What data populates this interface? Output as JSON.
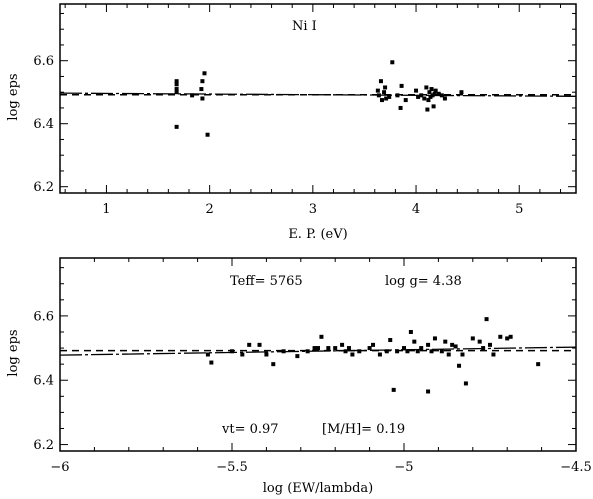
{
  "chart_data": [
    {
      "type": "scatter",
      "panel": "top",
      "annotation": "Ni I",
      "xlabel": "E. P. (eV)",
      "ylabel": "log eps",
      "xlim": [
        0.55,
        5.55
      ],
      "ylim": [
        6.18,
        6.78
      ],
      "xticks_major": [
        1,
        2,
        3,
        4,
        5
      ],
      "xticks_minor": [
        0.6,
        0.8,
        1.2,
        1.4,
        1.6,
        1.8,
        2.2,
        2.4,
        2.6,
        2.8,
        3.2,
        3.4,
        3.6,
        3.8,
        4.2,
        4.4,
        4.6,
        4.8,
        5.2,
        5.4
      ],
      "yticks_major": [
        6.2,
        6.4,
        6.6
      ],
      "yticks_minor": [
        6.25,
        6.3,
        6.35,
        6.45,
        6.5,
        6.55,
        6.65,
        6.7,
        6.75
      ],
      "tick_labels_x": [
        "1",
        "2",
        "3",
        "4",
        "5"
      ],
      "tick_labels_y": [
        "6.2",
        "6.4",
        "6.6"
      ],
      "points": [
        [
          1.68,
          6.535
        ],
        [
          1.68,
          6.525
        ],
        [
          1.68,
          6.51
        ],
        [
          1.68,
          6.5
        ],
        [
          1.68,
          6.39
        ],
        [
          1.83,
          6.49
        ],
        [
          1.92,
          6.51
        ],
        [
          1.93,
          6.535
        ],
        [
          1.93,
          6.48
        ],
        [
          1.95,
          6.56
        ],
        [
          1.98,
          6.365
        ],
        [
          3.63,
          6.505
        ],
        [
          3.64,
          6.49
        ],
        [
          3.66,
          6.535
        ],
        [
          3.67,
          6.475
        ],
        [
          3.69,
          6.5
        ],
        [
          3.7,
          6.515
        ],
        [
          3.71,
          6.48
        ],
        [
          3.74,
          6.485
        ],
        [
          3.77,
          6.595
        ],
        [
          3.82,
          6.49
        ],
        [
          3.85,
          6.45
        ],
        [
          3.86,
          6.52
        ],
        [
          3.9,
          6.475
        ],
        [
          4.0,
          6.505
        ],
        [
          4.02,
          6.485
        ],
        [
          4.05,
          6.49
        ],
        [
          4.08,
          6.48
        ],
        [
          4.1,
          6.515
        ],
        [
          4.11,
          6.445
        ],
        [
          4.12,
          6.475
        ],
        [
          4.13,
          6.5
        ],
        [
          4.14,
          6.485
        ],
        [
          4.15,
          6.51
        ],
        [
          4.16,
          6.49
        ],
        [
          4.17,
          6.455
        ],
        [
          4.18,
          6.495
        ],
        [
          4.19,
          6.505
        ],
        [
          4.22,
          6.495
        ],
        [
          4.25,
          6.49
        ],
        [
          4.28,
          6.48
        ],
        [
          4.44,
          6.5
        ]
      ],
      "fit_solid": {
        "x": [
          0.55,
          5.55
        ],
        "y": [
          6.497,
          6.487
        ]
      },
      "fit_dashed": {
        "x": [
          0.55,
          5.55
        ],
        "y": [
          6.492,
          6.492
        ]
      }
    },
    {
      "type": "scatter",
      "panel": "bottom",
      "annotations": {
        "teff": "Teff= 5765",
        "logg": "log g= 4.38",
        "vt": "vt= 0.97",
        "mh": "[M/H]= 0.19"
      },
      "xlabel": "log (EW/lambda)",
      "ylabel": "log eps",
      "xlim": [
        -6.0,
        -4.5
      ],
      "ylim": [
        6.18,
        6.78
      ],
      "xticks_major": [
        -6,
        -5.5,
        -5,
        -4.5
      ],
      "xticks_minor": [
        -5.9,
        -5.8,
        -5.7,
        -5.6,
        -5.4,
        -5.3,
        -5.2,
        -5.1,
        -4.9,
        -4.8,
        -4.7,
        -4.6
      ],
      "yticks_major": [
        6.2,
        6.4,
        6.6
      ],
      "yticks_minor": [
        6.25,
        6.3,
        6.35,
        6.45,
        6.5,
        6.55,
        6.65,
        6.7,
        6.75
      ],
      "tick_labels_x": [
        "−6",
        "−5.5",
        "−5",
        "−4.5"
      ],
      "tick_labels_y": [
        "6.2",
        "6.4",
        "6.6"
      ],
      "points": [
        [
          -5.57,
          6.48
        ],
        [
          -5.56,
          6.455
        ],
        [
          -5.5,
          6.49
        ],
        [
          -5.47,
          6.48
        ],
        [
          -5.45,
          6.51
        ],
        [
          -5.42,
          6.51
        ],
        [
          -5.4,
          6.48
        ],
        [
          -5.38,
          6.45
        ],
        [
          -5.35,
          6.49
        ],
        [
          -5.31,
          6.475
        ],
        [
          -5.28,
          6.49
        ],
        [
          -5.26,
          6.5
        ],
        [
          -5.25,
          6.5
        ],
        [
          -5.24,
          6.535
        ],
        [
          -5.22,
          6.5
        ],
        [
          -5.2,
          6.5
        ],
        [
          -5.18,
          6.51
        ],
        [
          -5.17,
          6.49
        ],
        [
          -5.16,
          6.5
        ],
        [
          -5.15,
          6.48
        ],
        [
          -5.13,
          6.49
        ],
        [
          -5.1,
          6.5
        ],
        [
          -5.09,
          6.51
        ],
        [
          -5.07,
          6.48
        ],
        [
          -5.05,
          6.49
        ],
        [
          -5.04,
          6.525
        ],
        [
          -5.02,
          6.49
        ],
        [
          -5.0,
          6.5
        ],
        [
          -4.99,
          6.49
        ],
        [
          -4.98,
          6.55
        ],
        [
          -4.97,
          6.52
        ],
        [
          -4.96,
          6.49
        ],
        [
          -4.95,
          6.5
        ],
        [
          -4.93,
          6.51
        ],
        [
          -4.92,
          6.49
        ],
        [
          -4.91,
          6.53
        ],
        [
          -4.89,
          6.49
        ],
        [
          -4.88,
          6.52
        ],
        [
          -4.87,
          6.48
        ],
        [
          -4.86,
          6.51
        ],
        [
          -4.85,
          6.505
        ],
        [
          -4.84,
          6.445
        ],
        [
          -4.83,
          6.48
        ],
        [
          -4.82,
          6.39
        ],
        [
          -4.8,
          6.53
        ],
        [
          -4.78,
          6.52
        ],
        [
          -4.77,
          6.5
        ],
        [
          -4.76,
          6.59
        ],
        [
          -4.75,
          6.51
        ],
        [
          -4.74,
          6.48
        ],
        [
          -4.72,
          6.535
        ],
        [
          -4.7,
          6.53
        ],
        [
          -4.69,
          6.535
        ],
        [
          -4.61,
          6.45
        ],
        [
          -5.03,
          6.37
        ],
        [
          -4.93,
          6.365
        ]
      ],
      "fit_solid": {
        "x": [
          -6.0,
          -4.5
        ],
        "y": [
          6.478,
          6.503
        ]
      },
      "fit_dashed": {
        "x": [
          -6.0,
          -4.5
        ],
        "y": [
          6.492,
          6.492
        ]
      }
    }
  ]
}
